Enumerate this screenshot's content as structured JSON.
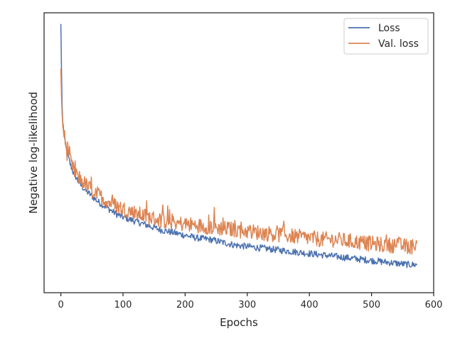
{
  "chart_data": {
    "type": "line",
    "title": "",
    "xlabel": "Epochs",
    "ylabel": "Negative log-likelihood",
    "xlim": [
      -27,
      600
    ],
    "ylim": [
      0,
      1
    ],
    "xticks": [
      0,
      100,
      200,
      300,
      400,
      500,
      600
    ],
    "yticks_shown": false,
    "grid": false,
    "legend_position": "top-right",
    "series": [
      {
        "name": "Loss",
        "color": "#4c72b0",
        "x": [
          0,
          1,
          2,
          3,
          5,
          7,
          10,
          15,
          20,
          25,
          30,
          40,
          50,
          60,
          70,
          80,
          90,
          100,
          120,
          140,
          160,
          180,
          200,
          220,
          240,
          260,
          280,
          300,
          320,
          340,
          360,
          380,
          400,
          420,
          440,
          460,
          480,
          500,
          520,
          540,
          560,
          573
        ],
        "y": [
          0.96,
          0.8,
          0.67,
          0.61,
          0.57,
          0.53,
          0.5,
          0.46,
          0.43,
          0.41,
          0.39,
          0.365,
          0.345,
          0.325,
          0.31,
          0.295,
          0.28,
          0.27,
          0.255,
          0.24,
          0.225,
          0.215,
          0.205,
          0.195,
          0.19,
          0.18,
          0.17,
          0.165,
          0.16,
          0.155,
          0.15,
          0.145,
          0.14,
          0.135,
          0.13,
          0.125,
          0.12,
          0.115,
          0.11,
          0.105,
          0.1,
          0.1
        ]
      },
      {
        "name": "Val. loss",
        "color": "#dd8452",
        "x": [
          0,
          1,
          2,
          3,
          5,
          7,
          10,
          15,
          20,
          25,
          30,
          40,
          50,
          60,
          70,
          80,
          90,
          100,
          120,
          140,
          160,
          180,
          200,
          220,
          240,
          260,
          280,
          300,
          320,
          340,
          360,
          380,
          400,
          420,
          440,
          460,
          480,
          500,
          520,
          540,
          560,
          573
        ],
        "y": [
          0.8,
          0.7,
          0.64,
          0.6,
          0.57,
          0.54,
          0.5,
          0.47,
          0.44,
          0.42,
          0.41,
          0.385,
          0.365,
          0.35,
          0.335,
          0.32,
          0.31,
          0.3,
          0.285,
          0.27,
          0.26,
          0.25,
          0.245,
          0.24,
          0.235,
          0.23,
          0.225,
          0.22,
          0.215,
          0.21,
          0.205,
          0.2,
          0.195,
          0.19,
          0.19,
          0.185,
          0.18,
          0.175,
          0.17,
          0.17,
          0.165,
          0.165
        ]
      }
    ]
  }
}
